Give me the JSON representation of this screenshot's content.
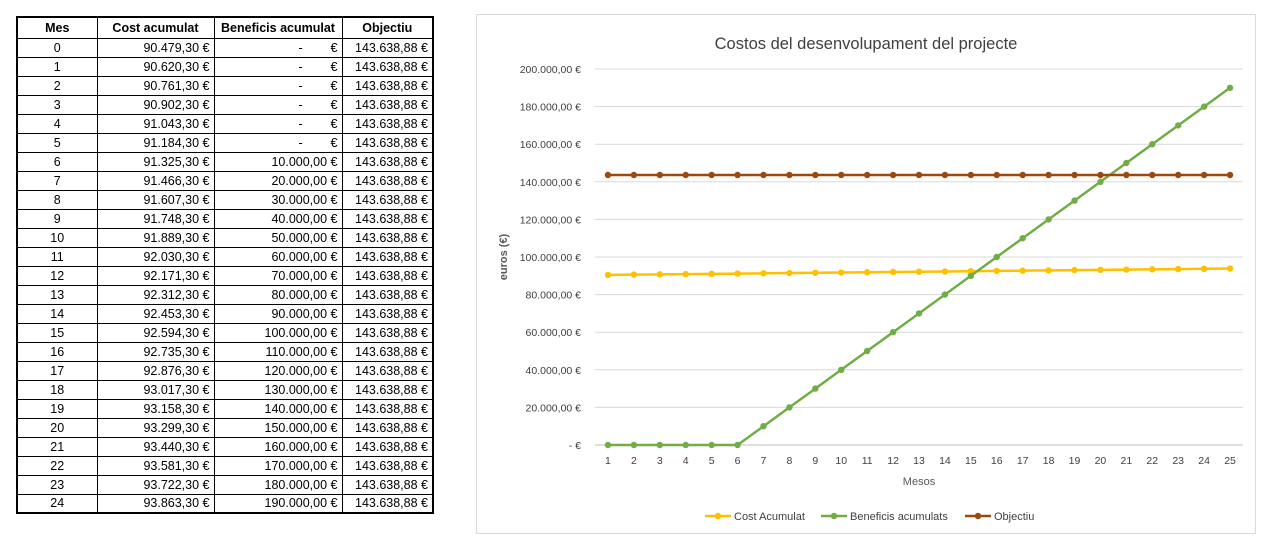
{
  "table": {
    "headers": [
      "Mes",
      "Cost acumulat",
      "Beneficis acumulat",
      "Objectiu"
    ],
    "rows": [
      [
        "0",
        "90.479,30 €",
        "-",
        "143.638,88 €"
      ],
      [
        "1",
        "90.620,30 €",
        "-",
        "143.638,88 €"
      ],
      [
        "2",
        "90.761,30 €",
        "-",
        "143.638,88 €"
      ],
      [
        "3",
        "90.902,30 €",
        "-",
        "143.638,88 €"
      ],
      [
        "4",
        "91.043,30 €",
        "-",
        "143.638,88 €"
      ],
      [
        "5",
        "91.184,30 €",
        "-",
        "143.638,88 €"
      ],
      [
        "6",
        "91.325,30 €",
        "10.000,00 €",
        "143.638,88 €"
      ],
      [
        "7",
        "91.466,30 €",
        "20.000,00 €",
        "143.638,88 €"
      ],
      [
        "8",
        "91.607,30 €",
        "30.000,00 €",
        "143.638,88 €"
      ],
      [
        "9",
        "91.748,30 €",
        "40.000,00 €",
        "143.638,88 €"
      ],
      [
        "10",
        "91.889,30 €",
        "50.000,00 €",
        "143.638,88 €"
      ],
      [
        "11",
        "92.030,30 €",
        "60.000,00 €",
        "143.638,88 €"
      ],
      [
        "12",
        "92.171,30 €",
        "70.000,00 €",
        "143.638,88 €"
      ],
      [
        "13",
        "92.312,30 €",
        "80.000,00 €",
        "143.638,88 €"
      ],
      [
        "14",
        "92.453,30 €",
        "90.000,00 €",
        "143.638,88 €"
      ],
      [
        "15",
        "92.594,30 €",
        "100.000,00 €",
        "143.638,88 €"
      ],
      [
        "16",
        "92.735,30 €",
        "110.000,00 €",
        "143.638,88 €"
      ],
      [
        "17",
        "92.876,30 €",
        "120.000,00 €",
        "143.638,88 €"
      ],
      [
        "18",
        "93.017,30 €",
        "130.000,00 €",
        "143.638,88 €"
      ],
      [
        "19",
        "93.158,30 €",
        "140.000,00 €",
        "143.638,88 €"
      ],
      [
        "20",
        "93.299,30 €",
        "150.000,00 €",
        "143.638,88 €"
      ],
      [
        "21",
        "93.440,30 €",
        "160.000,00 €",
        "143.638,88 €"
      ],
      [
        "22",
        "93.581,30 €",
        "170.000,00 €",
        "143.638,88 €"
      ],
      [
        "23",
        "93.722,30 €",
        "180.000,00 €",
        "143.638,88 €"
      ],
      [
        "24",
        "93.863,30 €",
        "190.000,00 €",
        "143.638,88 €"
      ]
    ]
  },
  "chart_data": {
    "type": "line",
    "title": "Costos del desenvolupament del projecte",
    "xlabel": "Mesos",
    "ylabel": "euros (€)",
    "x": [
      1,
      2,
      3,
      4,
      5,
      6,
      7,
      8,
      9,
      10,
      11,
      12,
      13,
      14,
      15,
      16,
      17,
      18,
      19,
      20,
      21,
      22,
      23,
      24,
      25
    ],
    "ylim": [
      0,
      200000
    ],
    "y_ticks": [
      0,
      20000,
      40000,
      60000,
      80000,
      100000,
      120000,
      140000,
      160000,
      180000,
      200000
    ],
    "y_tick_labels": [
      "-   €",
      "20.000,00 €",
      "40.000,00 €",
      "60.000,00 €",
      "80.000,00 €",
      "100.000,00 €",
      "120.000,00 €",
      "140.000,00 €",
      "160.000,00 €",
      "180.000,00 €",
      "200.000,00 €"
    ],
    "grid": true,
    "legend_position": "bottom",
    "series": [
      {
        "name": "Cost Acumulat",
        "color": "#FFC000",
        "values": [
          90479.3,
          90620.3,
          90761.3,
          90902.3,
          91043.3,
          91184.3,
          91325.3,
          91466.3,
          91607.3,
          91748.3,
          91889.3,
          92030.3,
          92171.3,
          92312.3,
          92453.3,
          92594.3,
          92735.3,
          92876.3,
          93017.3,
          93158.3,
          93299.3,
          93440.3,
          93581.3,
          93722.3,
          93863.3
        ]
      },
      {
        "name": "Beneficis acumulats",
        "color": "#70AD47",
        "values": [
          0,
          0,
          0,
          0,
          0,
          0,
          10000,
          20000,
          30000,
          40000,
          50000,
          60000,
          70000,
          80000,
          90000,
          100000,
          110000,
          120000,
          130000,
          140000,
          150000,
          160000,
          170000,
          180000,
          190000
        ]
      },
      {
        "name": "Objectiu",
        "color": "#9E480E",
        "values": [
          143638.88,
          143638.88,
          143638.88,
          143638.88,
          143638.88,
          143638.88,
          143638.88,
          143638.88,
          143638.88,
          143638.88,
          143638.88,
          143638.88,
          143638.88,
          143638.88,
          143638.88,
          143638.88,
          143638.88,
          143638.88,
          143638.88,
          143638.88,
          143638.88,
          143638.88,
          143638.88,
          143638.88,
          143638.88
        ]
      }
    ]
  }
}
